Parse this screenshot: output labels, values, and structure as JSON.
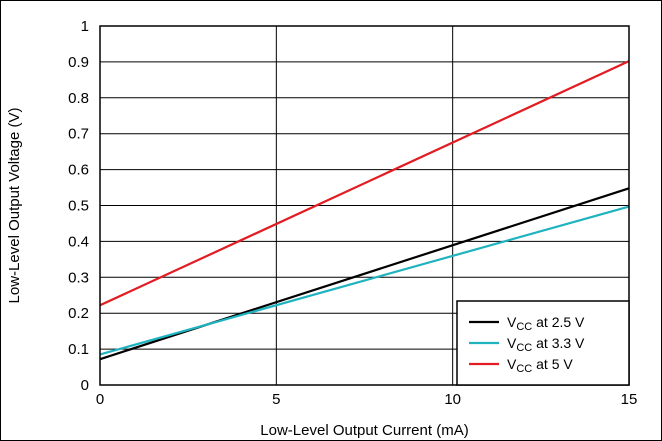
{
  "chart_data": {
    "type": "line",
    "title": "",
    "xlabel": "Low-Level Output Current (mA)",
    "ylabel": "Low-Level Output Voltage (V)",
    "xlim": [
      0,
      15
    ],
    "ylim": [
      0,
      1
    ],
    "xticks": [
      0,
      5,
      10,
      15
    ],
    "yticks": [
      0,
      0.1,
      0.2,
      0.3,
      0.4,
      0.5,
      0.6,
      0.7,
      0.8,
      0.9,
      1
    ],
    "grid": true,
    "legend_position": "bottom-right",
    "series": [
      {
        "name": "V",
        "subscript": "CC",
        "suffix": " at 2.5 V",
        "color": "#000000",
        "x": [
          0,
          15
        ],
        "y": [
          0.072,
          0.548
        ]
      },
      {
        "name": "V",
        "subscript": "CC",
        "suffix": " at 3.3 V",
        "color": "#1fb3c0",
        "x": [
          0,
          15
        ],
        "y": [
          0.085,
          0.497
        ]
      },
      {
        "name": "V",
        "subscript": "CC",
        "suffix": " at 5 V",
        "color": "#e31b23",
        "x": [
          0,
          15
        ],
        "y": [
          0.222,
          0.902
        ]
      }
    ]
  }
}
